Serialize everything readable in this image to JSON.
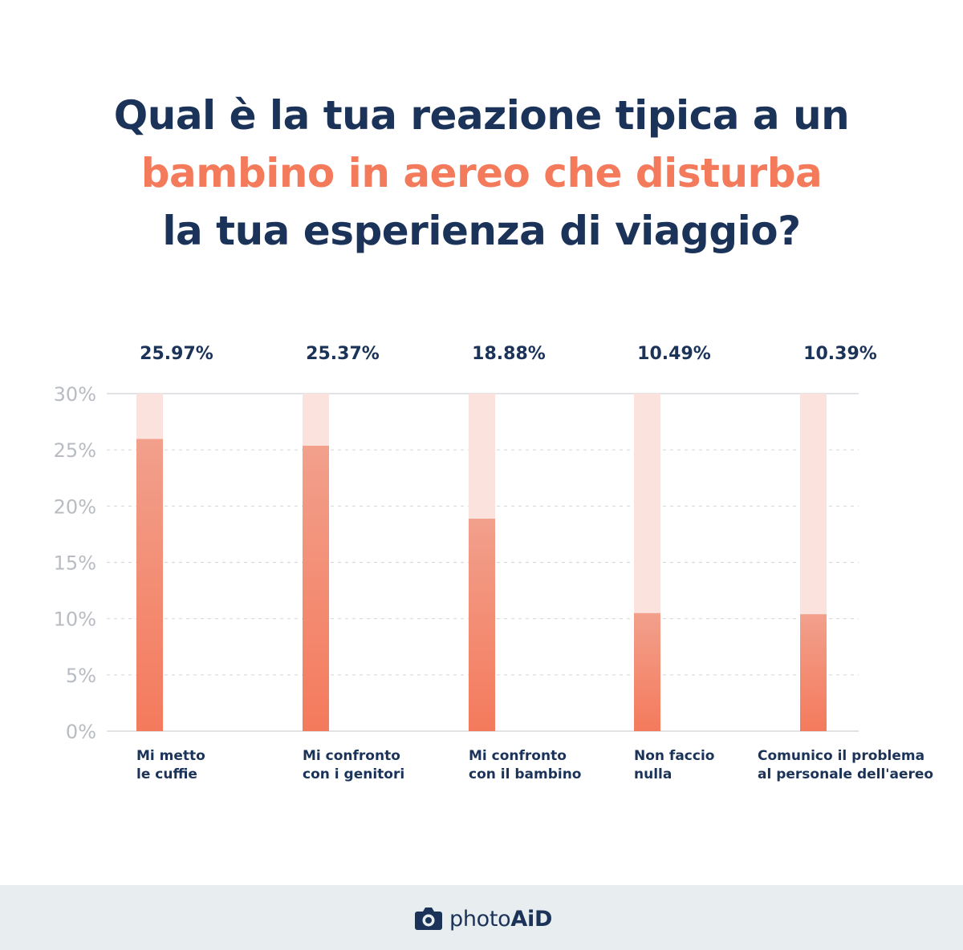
{
  "title": {
    "line1": "Qual è la tua reazione tipica a un",
    "line2": "bambino in aereo che disturba",
    "line3": "la tua esperienza di viaggio?"
  },
  "chart_data": {
    "type": "bar",
    "categories": [
      "Mi metto\nle cuffie",
      "Mi confronto\ncon i genitori",
      "Mi confronto\ncon il bambino",
      "Non faccio\nnulla",
      "Comunico il problema\nal personale dell'aereo"
    ],
    "values": [
      25.97,
      25.37,
      18.88,
      10.49,
      10.39
    ],
    "value_labels": [
      "25.97%",
      "25.37%",
      "18.88%",
      "10.49%",
      "10.39%"
    ],
    "ylim": [
      0,
      30
    ],
    "yticks": [
      0,
      5,
      10,
      15,
      20,
      25,
      30
    ],
    "ytick_labels": [
      "0%",
      "5%",
      "10%",
      "15%",
      "20%",
      "25%",
      "30%"
    ],
    "grid": true,
    "colors": {
      "bar_top": "#f2a08c",
      "bar_bottom": "#f47a5c",
      "track": "#fce2dc",
      "grid": "#d8dadd",
      "text": "#1b3358",
      "tick": "#b8bcc2"
    }
  },
  "footer": {
    "brand_regular": "photo",
    "brand_bold": "AiD",
    "icon": "camera-icon"
  }
}
